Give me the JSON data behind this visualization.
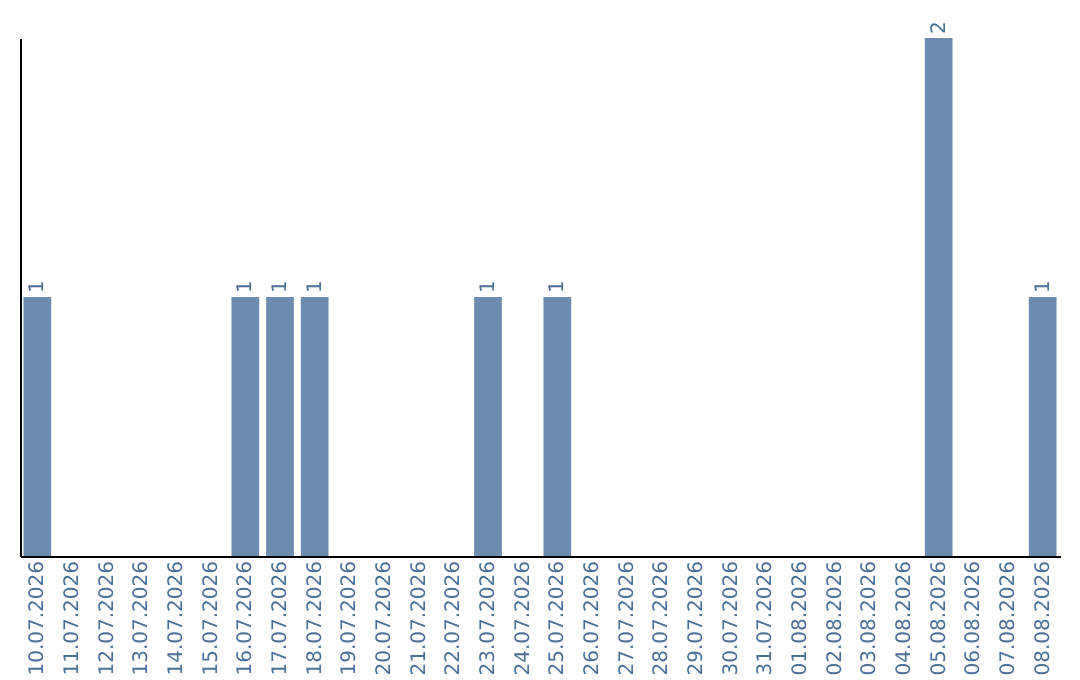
{
  "chart_data": {
    "type": "bar",
    "categories": [
      "10.07.2026",
      "11.07.2026",
      "12.07.2026",
      "13.07.2026",
      "14.07.2026",
      "15.07.2026",
      "16.07.2026",
      "17.07.2026",
      "18.07.2026",
      "19.07.2026",
      "20.07.2026",
      "21.07.2026",
      "22.07.2026",
      "23.07.2026",
      "24.07.2026",
      "25.07.2026",
      "26.07.2026",
      "27.07.2026",
      "28.07.2026",
      "29.07.2026",
      "30.07.2026",
      "31.07.2026",
      "01.08.2026",
      "02.08.2026",
      "03.08.2026",
      "04.08.2026",
      "05.08.2026",
      "06.08.2026",
      "07.08.2026",
      "08.08.2026"
    ],
    "values": [
      1,
      0,
      0,
      0,
      0,
      0,
      1,
      1,
      1,
      0,
      0,
      0,
      0,
      1,
      0,
      1,
      0,
      0,
      0,
      0,
      0,
      0,
      0,
      0,
      0,
      0,
      2,
      0,
      0,
      1
    ],
    "value_labels": [
      "1",
      null,
      null,
      null,
      null,
      null,
      "1",
      "1",
      "1",
      null,
      null,
      null,
      null,
      "1",
      null,
      "1",
      null,
      null,
      null,
      null,
      null,
      null,
      null,
      null,
      null,
      null,
      "2",
      null,
      null,
      "1"
    ],
    "color": "#6b8cae",
    "grid": false,
    "tick_labels": "x"
  }
}
